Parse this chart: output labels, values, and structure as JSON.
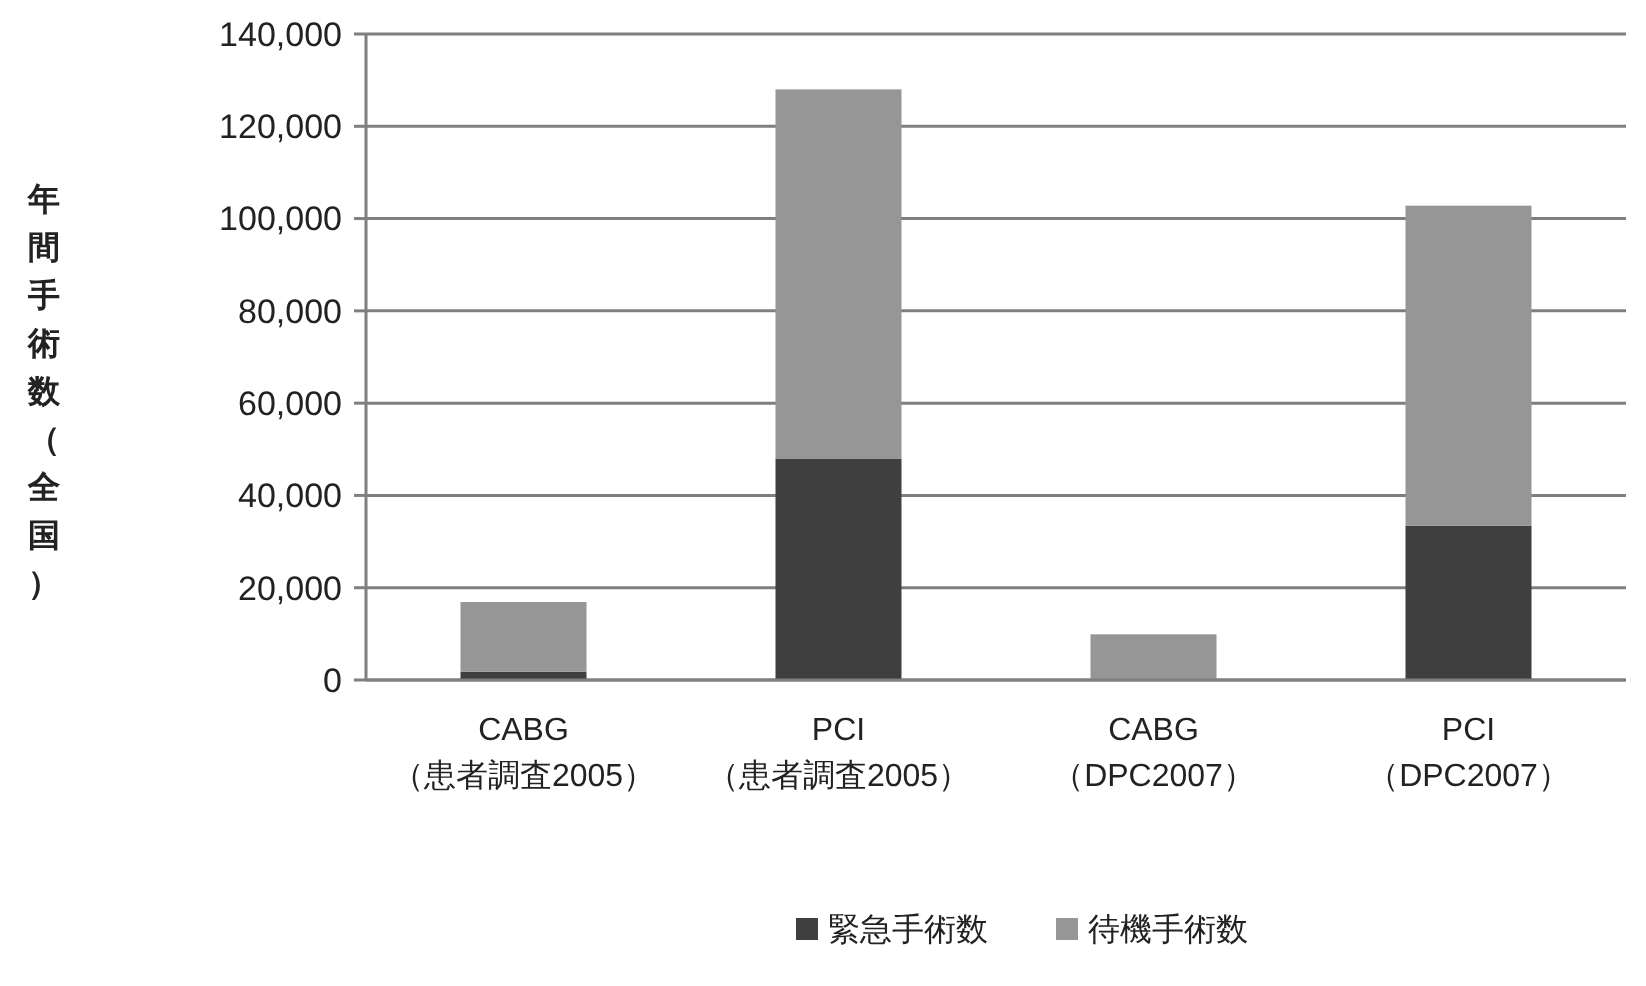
{
  "chart_data": {
    "type": "bar",
    "ylabel": "年間手術数（全国）",
    "categories": [
      "CABG\n（患者調査2005）",
      "PCI\n（患者調査2005）",
      "CABG\n（DPC2007）",
      "PCI\n（DPC2007）"
    ],
    "series": [
      {
        "name": "緊急手術数",
        "color": "#3f3f3f",
        "values": [
          1800,
          48000,
          0,
          33400
        ]
      },
      {
        "name": "待機手術数",
        "color": "#969696",
        "values": [
          15100,
          80000,
          9900,
          69400
        ]
      }
    ],
    "stacked": true,
    "ylim": [
      0,
      140000
    ],
    "yticks": [
      {
        "value": 0,
        "label": "0"
      },
      {
        "value": 20000,
        "label": "20,000"
      },
      {
        "value": 40000,
        "label": "40,000"
      },
      {
        "value": 60000,
        "label": "60,000"
      },
      {
        "value": 80000,
        "label": "80,000"
      },
      {
        "value": 100000,
        "label": "100,000"
      },
      {
        "value": 120000,
        "label": "120,000"
      },
      {
        "value": 140000,
        "label": "140,000"
      }
    ],
    "grid": "y",
    "legend": "bottom"
  }
}
